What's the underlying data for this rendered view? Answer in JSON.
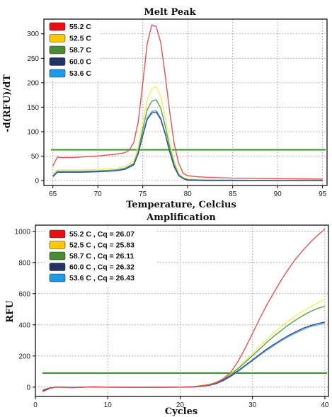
{
  "chart_data": [
    {
      "type": "line",
      "title": "Melt Peak",
      "xlabel": "Temperature, Celcius",
      "ylabel": "-d(RFU)/dT",
      "xlim": [
        64,
        95.5
      ],
      "ylim": [
        -10,
        330
      ],
      "xticks": [
        65,
        70,
        75,
        80,
        85,
        90,
        95
      ],
      "yticks": [
        0,
        50,
        100,
        150,
        200,
        250,
        300
      ],
      "grid": true,
      "legend_position": "top-left",
      "threshold": 63,
      "threshold_color": "#3a9a2a",
      "series": [
        {
          "name": "55.2 C",
          "color": "#f05050",
          "legend_color": "#e81010",
          "x": [
            65,
            65.5,
            66,
            67,
            68,
            69,
            70,
            71,
            72,
            73,
            73.5,
            74,
            74.5,
            75,
            75.5,
            76,
            76.5,
            77,
            77.5,
            78,
            78.5,
            79,
            79.5,
            80,
            81,
            82,
            85,
            90,
            95
          ],
          "y": [
            30,
            48,
            47,
            47,
            48,
            49,
            50,
            52,
            54,
            57,
            62,
            78,
            120,
            200,
            280,
            318,
            315,
            282,
            215,
            140,
            75,
            35,
            15,
            10,
            8,
            7,
            5,
            4,
            3
          ]
        },
        {
          "name": "52.5 C",
          "color": "#f0f060",
          "legend_color": "#ffc800",
          "x": [
            65,
            65.5,
            66,
            68,
            70,
            72,
            73,
            74,
            74.5,
            75,
            75.5,
            76,
            76.5,
            77,
            77.5,
            78,
            78.5,
            79,
            79.5,
            80,
            82,
            85,
            90,
            95
          ],
          "y": [
            12,
            22,
            22,
            22,
            23,
            25,
            28,
            40,
            70,
            120,
            165,
            188,
            192,
            172,
            130,
            80,
            40,
            15,
            6,
            3,
            2,
            1,
            1,
            1
          ]
        },
        {
          "name": "58.7 C",
          "color": "#5aa048",
          "legend_color": "#4a8c32",
          "x": [
            65,
            65.5,
            66,
            68,
            70,
            72,
            73,
            74,
            74.5,
            75,
            75.5,
            76,
            76.5,
            77,
            77.5,
            78,
            78.5,
            79,
            79.5,
            80,
            82,
            85,
            90,
            95
          ],
          "y": [
            10,
            19,
            19,
            19,
            20,
            22,
            25,
            35,
            60,
            105,
            145,
            162,
            165,
            148,
            112,
            68,
            34,
            12,
            5,
            2,
            1,
            1,
            0,
            0
          ]
        },
        {
          "name": "60.0 C",
          "color": "#3a4a90",
          "legend_color": "#223366",
          "x": [
            65,
            65.5,
            66,
            68,
            70,
            72,
            73,
            74,
            74.5,
            75,
            75.5,
            76,
            76.5,
            77,
            77.5,
            78,
            78.5,
            79,
            79.5,
            80,
            82,
            85,
            90,
            95
          ],
          "y": [
            8,
            17,
            17,
            17,
            18,
            20,
            23,
            32,
            55,
            92,
            125,
            138,
            140,
            125,
            95,
            58,
            28,
            10,
            4,
            1,
            0,
            0,
            0,
            0
          ]
        },
        {
          "name": "53.6 C",
          "color": "#50a8e8",
          "legend_color": "#1e9be8",
          "x": [
            65,
            65.5,
            66,
            68,
            70,
            72,
            73,
            74,
            74.5,
            75,
            75.5,
            76,
            76.5,
            77,
            77.5,
            78,
            78.5,
            79,
            79.5,
            80,
            82,
            85,
            90,
            95
          ],
          "y": [
            9,
            18,
            18,
            18,
            19,
            21,
            24,
            33,
            57,
            95,
            128,
            141,
            143,
            128,
            97,
            60,
            29,
            11,
            4,
            1,
            0,
            0,
            0,
            0
          ]
        }
      ]
    },
    {
      "type": "line",
      "title": "Amplification",
      "xlabel": "Cycles",
      "ylabel": "RFU",
      "xlim": [
        0,
        40.5
      ],
      "ylim": [
        -60,
        1040
      ],
      "xticks": [
        0,
        10,
        20,
        30,
        40
      ],
      "yticks": [
        0,
        200,
        400,
        600,
        800,
        1000
      ],
      "grid": true,
      "legend_position": "top-left",
      "threshold": 90,
      "threshold_color": "#3a9a2a",
      "series": [
        {
          "name": "55.2 C , Cq = 26.07",
          "color": "#f05050",
          "legend_color": "#e81010",
          "x": [
            1,
            2,
            3,
            5,
            8,
            10,
            15,
            20,
            22,
            24,
            25,
            26,
            27,
            28,
            29,
            30,
            31,
            32,
            33,
            34,
            35,
            36,
            37,
            38,
            39,
            40
          ],
          "y": [
            -30,
            -8,
            0,
            -4,
            2,
            0,
            -2,
            0,
            3,
            15,
            30,
            55,
            95,
            165,
            250,
            345,
            440,
            530,
            610,
            690,
            760,
            825,
            880,
            930,
            975,
            1015
          ]
        },
        {
          "name": "52.5 C , Cq = 25.83",
          "color": "#f0f060",
          "legend_color": "#ffc800",
          "x": [
            1,
            2,
            3,
            5,
            8,
            10,
            15,
            20,
            22,
            24,
            25,
            26,
            27,
            28,
            29,
            30,
            31,
            32,
            33,
            34,
            35,
            36,
            37,
            38,
            39,
            40
          ],
          "y": [
            -25,
            -5,
            2,
            -2,
            3,
            1,
            -1,
            1,
            4,
            18,
            32,
            55,
            85,
            125,
            170,
            215,
            262,
            308,
            350,
            390,
            425,
            458,
            488,
            515,
            540,
            565
          ]
        },
        {
          "name": "58.7 C , Cq = 26.11",
          "color": "#5aa048",
          "legend_color": "#4a8c32",
          "x": [
            1,
            2,
            3,
            5,
            8,
            10,
            15,
            20,
            22,
            24,
            25,
            26,
            27,
            28,
            29,
            30,
            31,
            32,
            33,
            34,
            35,
            36,
            37,
            38,
            39,
            40
          ],
          "y": [
            -25,
            -6,
            1,
            -3,
            2,
            0,
            -2,
            0,
            3,
            15,
            28,
            50,
            80,
            118,
            160,
            202,
            245,
            288,
            328,
            365,
            400,
            432,
            460,
            485,
            505,
            520
          ]
        },
        {
          "name": "60.0 C , Cq = 26.32",
          "color": "#3a4a90",
          "legend_color": "#223366",
          "x": [
            1,
            2,
            3,
            5,
            8,
            10,
            15,
            20,
            22,
            24,
            25,
            26,
            27,
            28,
            29,
            30,
            31,
            32,
            33,
            34,
            35,
            36,
            37,
            38,
            39,
            40
          ],
          "y": [
            -20,
            -5,
            1,
            -2,
            2,
            0,
            -1,
            0,
            2,
            12,
            24,
            45,
            72,
            105,
            140,
            175,
            210,
            245,
            275,
            305,
            332,
            356,
            378,
            395,
            408,
            418
          ]
        },
        {
          "name": "53.6 C , Cq = 26.43",
          "color": "#50a8e8",
          "legend_color": "#1e9be8",
          "x": [
            1,
            2,
            3,
            5,
            8,
            10,
            15,
            20,
            22,
            24,
            25,
            26,
            27,
            28,
            29,
            30,
            31,
            32,
            33,
            34,
            35,
            36,
            37,
            38,
            39,
            40
          ],
          "y": [
            -22,
            -6,
            0,
            -3,
            1,
            -1,
            -2,
            -1,
            1,
            10,
            22,
            42,
            68,
            100,
            135,
            170,
            205,
            238,
            268,
            298,
            325,
            348,
            370,
            388,
            400,
            410
          ]
        }
      ]
    }
  ]
}
